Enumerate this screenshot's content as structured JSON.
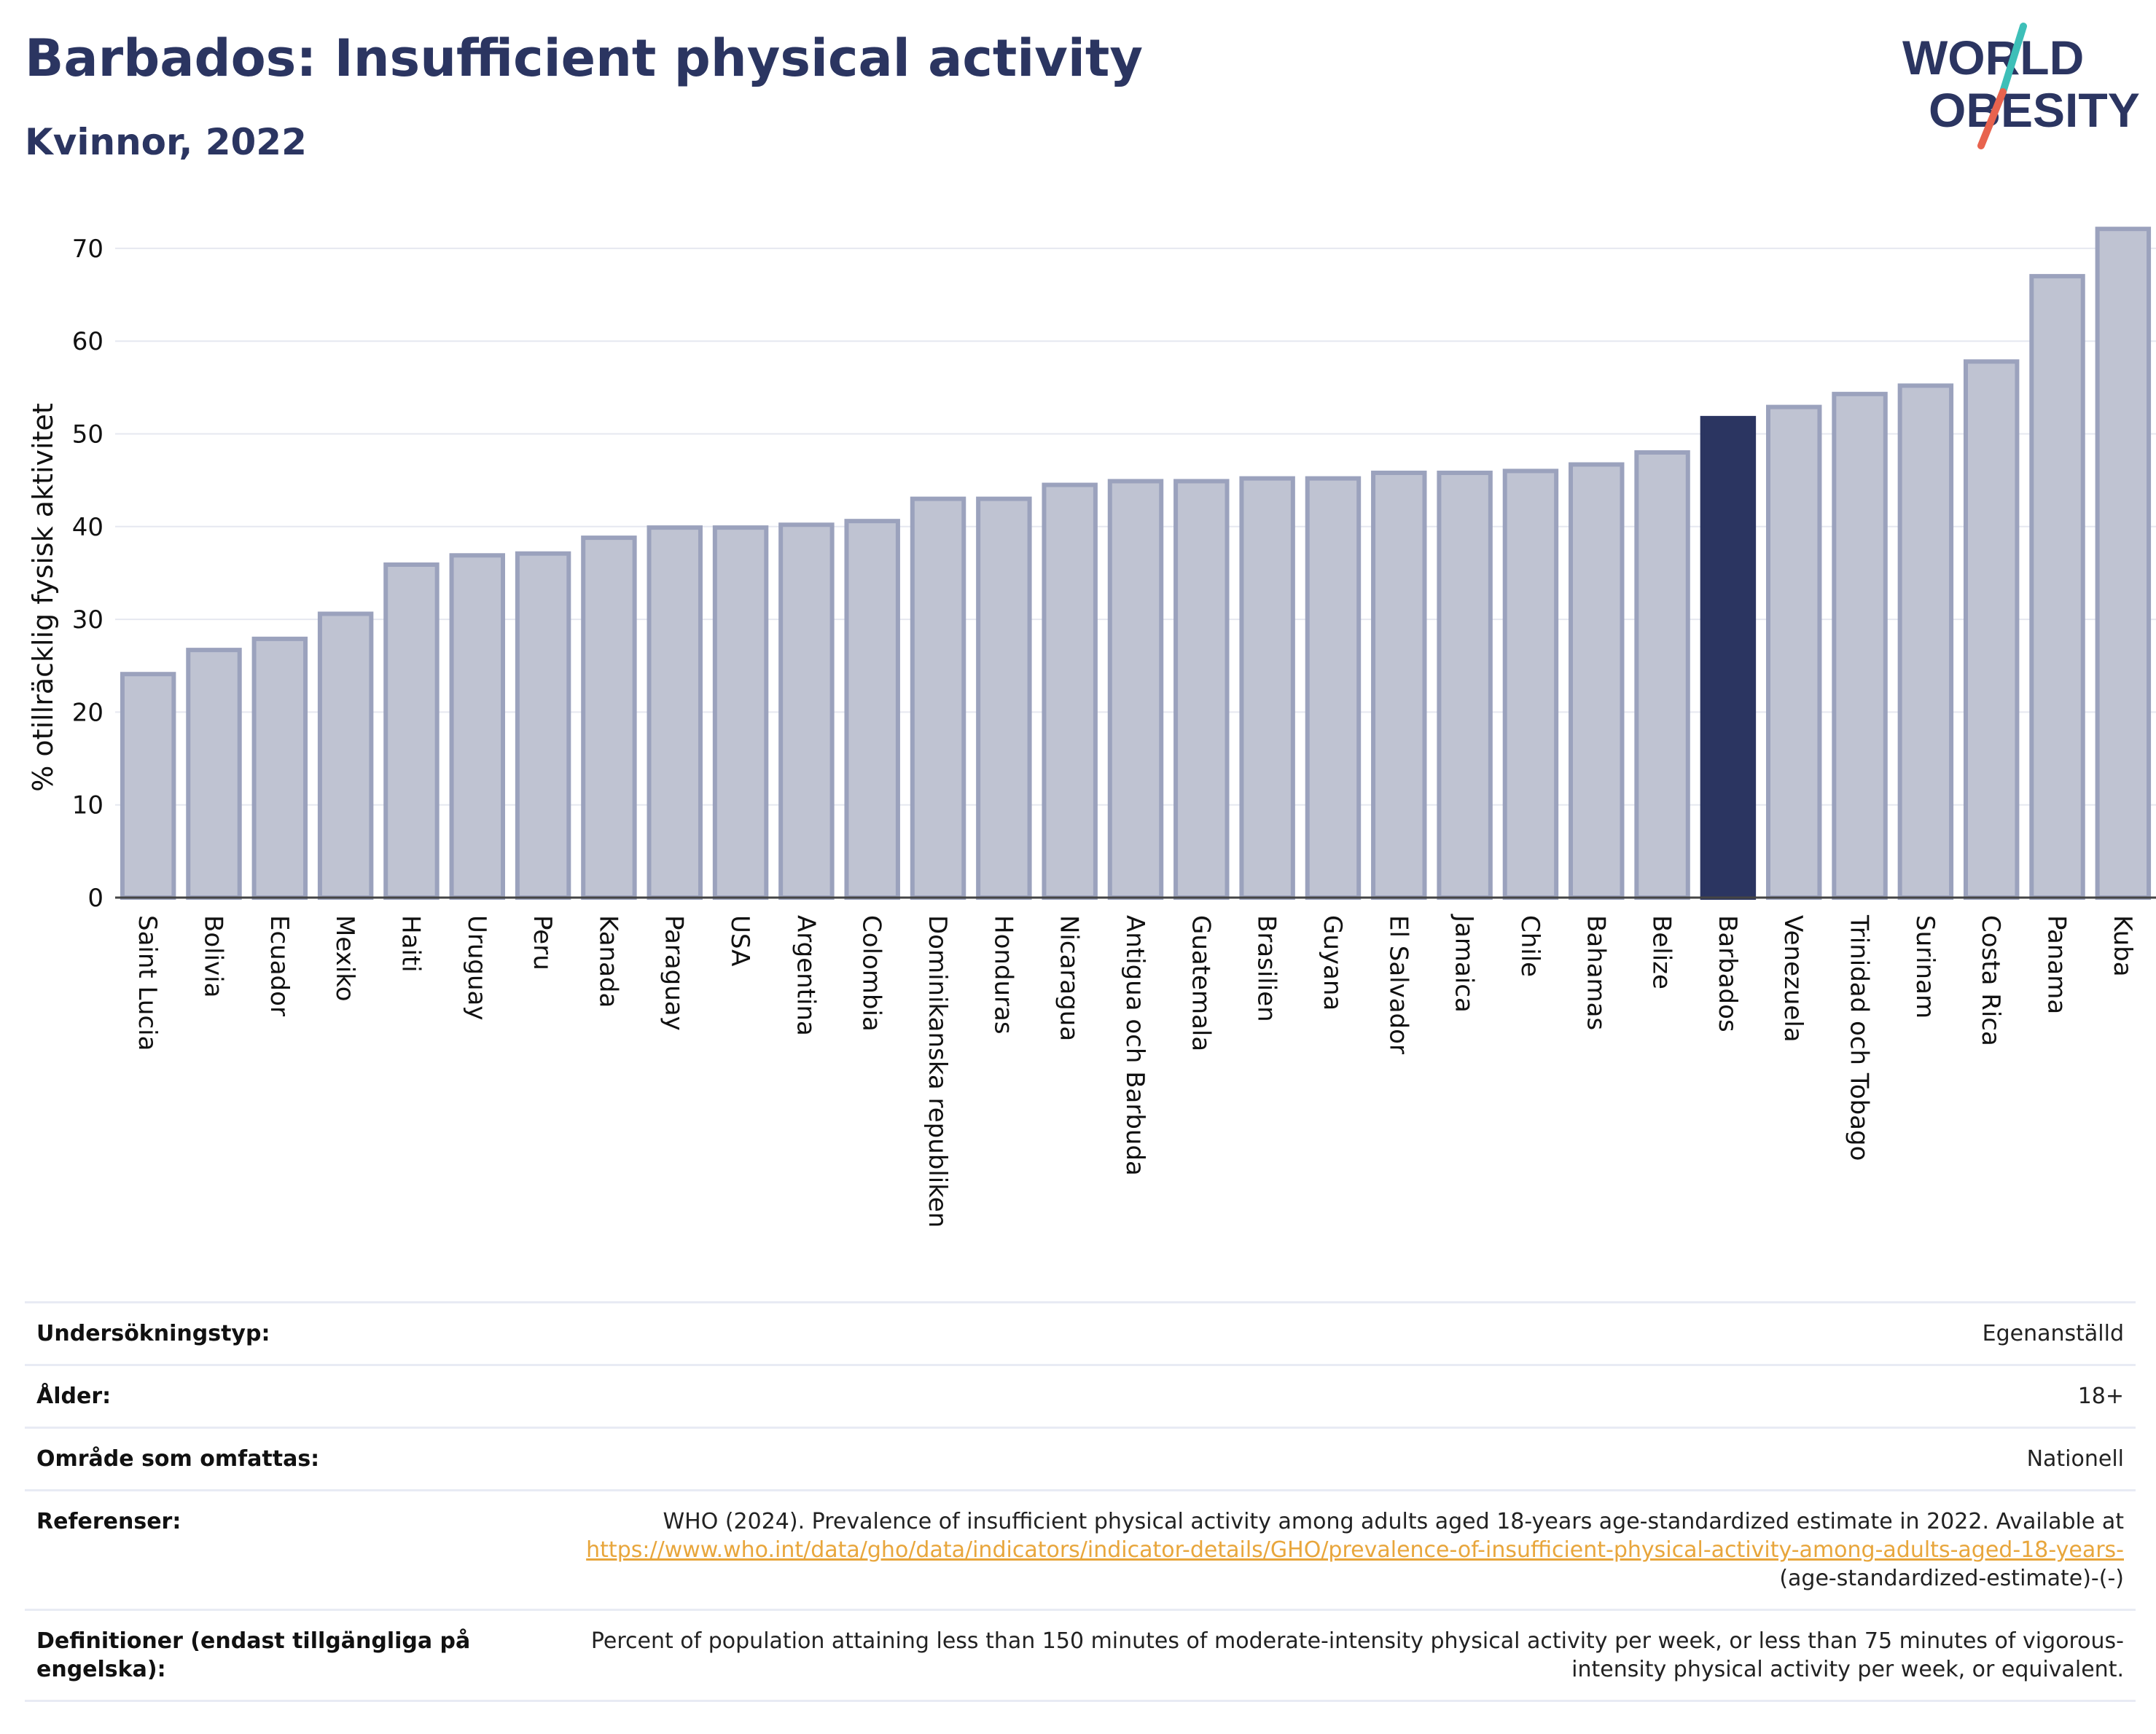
{
  "header": {
    "title": "Barbados: Insufficient physical activity",
    "subtitle": "Kvinnor, 2022",
    "logo_line1": "WORLD",
    "logo_line2": "OBESITY"
  },
  "colors": {
    "title": "#2b3561",
    "bar": "#bfc3d2",
    "bar_stroke": "#9ba2bd",
    "highlight": "#2b3561",
    "link": "#e8a63c",
    "logo_teal": "#3dbfb8",
    "logo_red": "#e8634e"
  },
  "chart_data": {
    "type": "bar",
    "ylabel": "% otillräcklig fysisk aktivitet",
    "ylim": [
      0,
      74
    ],
    "yticks": [
      0,
      10,
      20,
      30,
      40,
      50,
      60,
      70
    ],
    "grid": true,
    "highlight": "Barbados",
    "categories": [
      "Saint Lucia",
      "Bolivia",
      "Ecuador",
      "Mexiko",
      "Haiti",
      "Uruguay",
      "Peru",
      "Kanada",
      "Paraguay",
      "USA",
      "Argentina",
      "Colombia",
      "Dominikanska republiken",
      "Honduras",
      "Nicaragua",
      "Antigua och Barbuda",
      "Guatemala",
      "Brasilien",
      "Guyana",
      "El Salvador",
      "Jamaica",
      "Chile",
      "Bahamas",
      "Belize",
      "Barbados",
      "Venezuela",
      "Trinidad och Tobago",
      "Surinam",
      "Costa Rica",
      "Panama",
      "Kuba"
    ],
    "values": [
      24.1,
      26.7,
      27.9,
      30.6,
      35.9,
      36.9,
      37.1,
      38.8,
      39.9,
      39.9,
      40.2,
      40.6,
      43.0,
      43.0,
      44.5,
      44.9,
      44.9,
      45.2,
      45.2,
      45.8,
      45.8,
      46.0,
      46.7,
      48.0,
      51.7,
      52.9,
      54.3,
      55.2,
      57.8,
      67.0,
      72.1
    ]
  },
  "info_table": {
    "survey_type": {
      "label": "Undersökningstyp:",
      "value": "Egenanställd"
    },
    "age": {
      "label": "Ålder:",
      "value": "18+"
    },
    "coverage": {
      "label": "Område som omfattas:",
      "value": "Nationell"
    },
    "references": {
      "label": "Referenser:",
      "text": "WHO (2024). Prevalence of insufficient physical activity among adults aged 18-years age-standardized estimate in 2022. Available at",
      "link": "https://www.who.int/data/gho/data/indicators/indicator-details/GHO/prevalence-of-insufficient-physical-activity-among-adults-aged-18-years-",
      "suffix": "(age-standardized-estimate)-(-)"
    },
    "definitions": {
      "label": "Definitioner (endast tillgängliga på engelska):",
      "value": "Percent of population attaining less than 150 minutes of moderate-intensity physical activity per week, or less than 75 minutes of vigorous-intensity physical activity per week, or equivalent."
    }
  }
}
